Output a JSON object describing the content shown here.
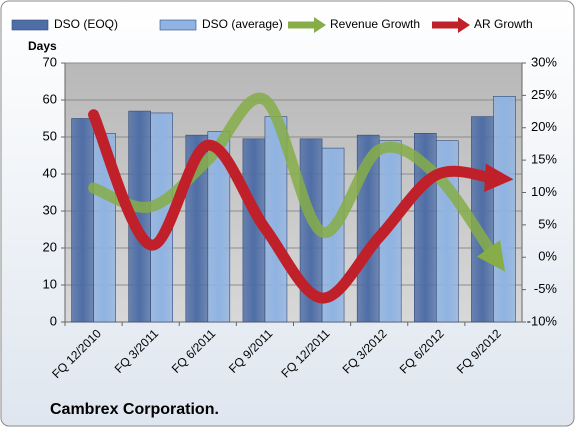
{
  "chart_data": {
    "type": "bar",
    "title": "Cambrex Corporation.",
    "y_label": "Days",
    "categories": [
      "FQ 12/2010",
      "FQ 3/2011",
      "FQ 6/2011",
      "FQ 9/2011",
      "FQ 12/2011",
      "FQ 3/2012",
      "FQ 6/2012",
      "FQ 9/2012"
    ],
    "series": [
      {
        "name": "DSO (EOQ)",
        "type": "bar",
        "color": "#4f6ea6",
        "values": [
          55,
          57,
          50.5,
          49.5,
          49.5,
          50.5,
          51,
          55.5
        ]
      },
      {
        "name": "DSO (average)",
        "type": "bar",
        "color": "#8fb3e2",
        "values": [
          51,
          56.5,
          51.5,
          55.5,
          47,
          49,
          49,
          61
        ]
      },
      {
        "name": "Revenue Growth",
        "type": "line",
        "axis": "y2",
        "color": "#86ad48",
        "values": [
          10.7,
          7.8,
          15,
          24.3,
          3.9,
          16.6,
          12.7,
          0.3
        ]
      },
      {
        "name": "AR Growth",
        "type": "line",
        "axis": "y2",
        "color": "#c0202a",
        "values": [
          22,
          1.9,
          17.3,
          4.5,
          -6.3,
          3.1,
          12.7,
          12.2
        ]
      }
    ],
    "ylim": [
      0,
      70
    ],
    "yticks": [
      0,
      10,
      20,
      30,
      40,
      50,
      60,
      70
    ],
    "y2lim": [
      -10,
      30
    ],
    "y2ticks": [
      {
        "value": -10,
        "label": "-10%"
      },
      {
        "value": -5,
        "label": "-5%"
      },
      {
        "value": 0,
        "label": "0%"
      },
      {
        "value": 5,
        "label": "5%"
      },
      {
        "value": 10,
        "label": "10%"
      },
      {
        "value": 15,
        "label": "15%"
      },
      {
        "value": 20,
        "label": "20%"
      },
      {
        "value": 25,
        "label": "25%"
      },
      {
        "value": 30,
        "label": "30%"
      }
    ],
    "grid": true,
    "legend": "top"
  }
}
